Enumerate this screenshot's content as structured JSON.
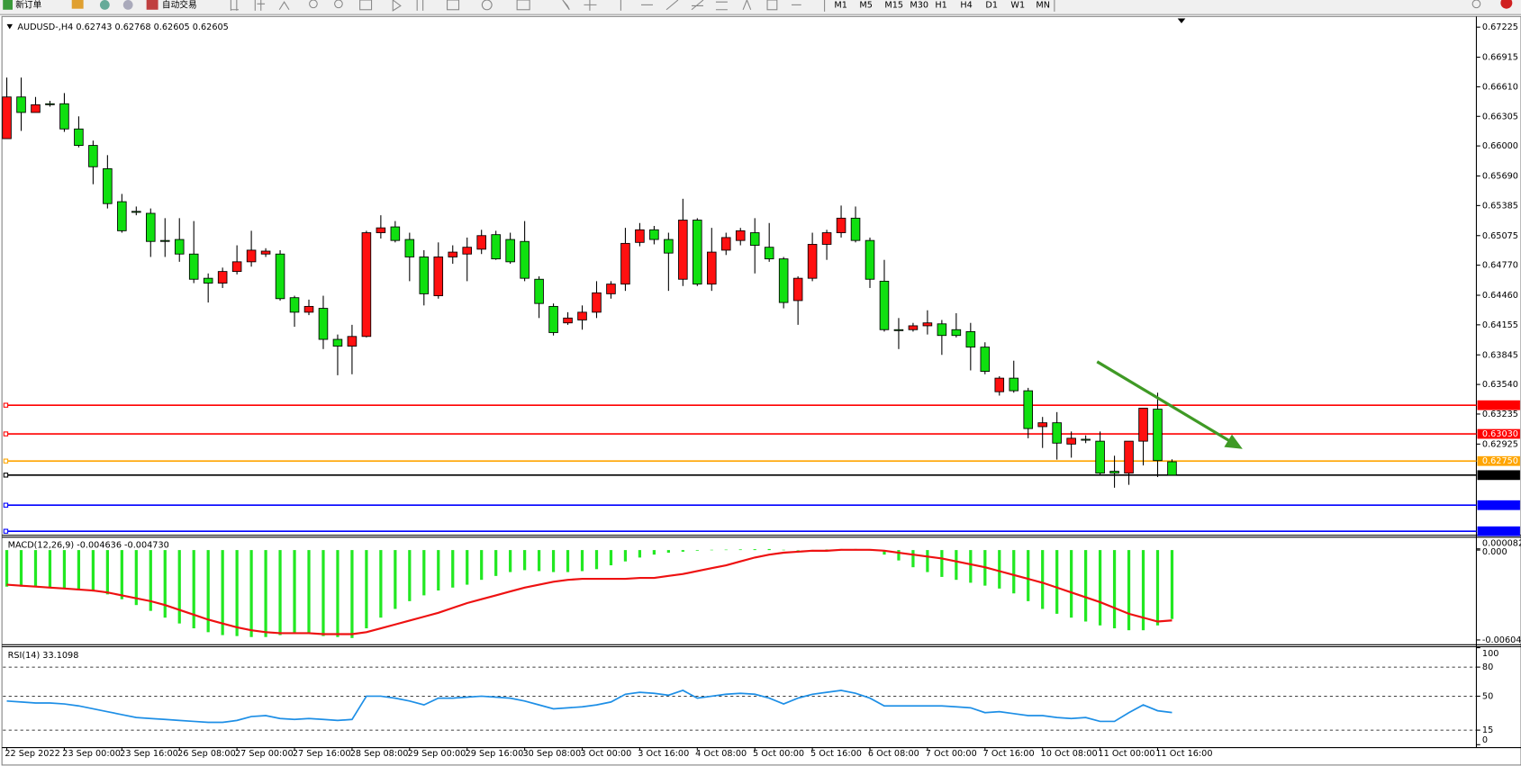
{
  "toolbar": {
    "new_order": "新订单",
    "auto_trading": "自动交易",
    "timeframes": [
      "M1",
      "M5",
      "M15",
      "M30",
      "H1",
      "H4",
      "D1",
      "W1",
      "MN"
    ]
  },
  "chart_data": [
    {
      "type": "candlestick",
      "title": "AUDUSD-,H4  0.62743 0.62768 0.62605 0.62605",
      "categories": [
        "22 Sep 2022",
        null,
        null,
        null,
        "23 Sep 00:00",
        null,
        null,
        null,
        "23 Sep 16:00",
        null,
        null,
        null,
        "26 Sep 08:00",
        null,
        null,
        null,
        "27 Sep 00:00",
        null,
        null,
        null,
        "27 Sep 16:00",
        null,
        null,
        null,
        "28 Sep 08:00",
        null,
        null,
        null,
        "29 Sep 00:00",
        null,
        null,
        null,
        "29 Sep 16:00",
        null,
        null,
        null,
        "30 Sep 08:00",
        null,
        null,
        null,
        "3 Oct 00:00",
        null,
        null,
        null,
        "3 Oct 16:00",
        null,
        null,
        null,
        "4 Oct 08:00",
        null,
        null,
        null,
        "5 Oct 00:00",
        null,
        null,
        null,
        "5 Oct 16:00",
        null,
        null,
        null,
        "6 Oct 08:00",
        null,
        null,
        null,
        "7 Oct 00:00",
        null,
        null,
        null,
        "7 Oct 16:00",
        null,
        null,
        null,
        "10 Oct 08:00",
        null,
        null,
        null,
        "11 Oct 00:00",
        null,
        null,
        null,
        "11 Oct 16:00",
        null
      ],
      "ohlc": [
        [
          0.66075,
          0.66705,
          0.66075,
          0.66505
        ],
        [
          0.66505,
          0.66705,
          0.66155,
          0.66345
        ],
        [
          0.66345,
          0.66505,
          0.66345,
          0.66425
        ],
        [
          0.66435,
          0.66465,
          0.66405,
          0.66425
        ],
        [
          0.66435,
          0.66545,
          0.66145,
          0.66175
        ],
        [
          0.66175,
          0.66305,
          0.65985,
          0.66005
        ],
        [
          0.66005,
          0.66055,
          0.65605,
          0.65785
        ],
        [
          0.65765,
          0.65905,
          0.65355,
          0.65405
        ],
        [
          0.65425,
          0.65505,
          0.65105,
          0.65125
        ],
        [
          0.65325,
          0.65375,
          0.65285,
          0.65315
        ],
        [
          0.65305,
          0.65355,
          0.64855,
          0.65015
        ],
        [
          0.65025,
          0.65255,
          0.64855,
          0.65015
        ],
        [
          0.65035,
          0.65255,
          0.64805,
          0.64885
        ],
        [
          0.64885,
          0.65225,
          0.64585,
          0.64625
        ],
        [
          0.64635,
          0.64685,
          0.64385,
          0.64585
        ],
        [
          0.64585,
          0.64745,
          0.64535,
          0.64705
        ],
        [
          0.64705,
          0.64975,
          0.64675,
          0.64805
        ],
        [
          0.64805,
          0.65125,
          0.64755,
          0.64925
        ],
        [
          0.64885,
          0.64945,
          0.64855,
          0.64915
        ],
        [
          0.64885,
          0.64925,
          0.64405,
          0.64425
        ],
        [
          0.64435,
          0.64455,
          0.64135,
          0.64285
        ],
        [
          0.64285,
          0.64415,
          0.64255,
          0.64345
        ],
        [
          0.64325,
          0.64455,
          0.63905,
          0.64005
        ],
        [
          0.64005,
          0.64055,
          0.63635,
          0.63935
        ],
        [
          0.63935,
          0.64155,
          0.63645,
          0.64035
        ],
        [
          0.64035,
          0.65125,
          0.64025,
          0.65105
        ],
        [
          0.65105,
          0.65285,
          0.65045,
          0.65155
        ],
        [
          0.65165,
          0.65225,
          0.65005,
          0.65025
        ],
        [
          0.65035,
          0.65105,
          0.64605,
          0.64855
        ],
        [
          0.64855,
          0.64925,
          0.64355,
          0.64475
        ],
        [
          0.64455,
          0.65005,
          0.64425,
          0.64855
        ],
        [
          0.64855,
          0.64975,
          0.64785,
          0.64905
        ],
        [
          0.64885,
          0.65055,
          0.64605,
          0.64955
        ],
        [
          0.64935,
          0.65135,
          0.64885,
          0.65075
        ],
        [
          0.65085,
          0.65125,
          0.64825,
          0.64835
        ],
        [
          0.65035,
          0.65105,
          0.64785,
          0.64805
        ],
        [
          0.65015,
          0.65225,
          0.64605,
          0.64635
        ],
        [
          0.64625,
          0.64655,
          0.64225,
          0.64375
        ],
        [
          0.64345,
          0.64375,
          0.64045,
          0.64075
        ],
        [
          0.64175,
          0.64285,
          0.64155,
          0.64225
        ],
        [
          0.64205,
          0.64355,
          0.64105,
          0.64285
        ],
        [
          0.64285,
          0.64605,
          0.64225,
          0.64485
        ],
        [
          0.64475,
          0.64605,
          0.64425,
          0.64575
        ],
        [
          0.64575,
          0.65155,
          0.64505,
          0.64995
        ],
        [
          0.65005,
          0.65205,
          0.64965,
          0.65135
        ],
        [
          0.65135,
          0.65175,
          0.64985,
          0.65035
        ],
        [
          0.65035,
          0.65105,
          0.64505,
          0.64895
        ],
        [
          0.64625,
          0.65455,
          0.64555,
          0.65235
        ],
        [
          0.65235,
          0.65255,
          0.64555,
          0.64575
        ],
        [
          0.64575,
          0.65155,
          0.64505,
          0.64905
        ],
        [
          0.64925,
          0.65105,
          0.64875,
          0.65055
        ],
        [
          0.65025,
          0.65155,
          0.64975,
          0.65125
        ],
        [
          0.65105,
          0.65255,
          0.64685,
          0.64975
        ],
        [
          0.64955,
          0.65205,
          0.64805,
          0.64835
        ],
        [
          0.64835,
          0.64855,
          0.64325,
          0.64385
        ],
        [
          0.64405,
          0.64655,
          0.64155,
          0.64635
        ],
        [
          0.64635,
          0.65105,
          0.64605,
          0.64985
        ],
        [
          0.64985,
          0.65135,
          0.64825,
          0.65105
        ],
        [
          0.65105,
          0.65385,
          0.65055,
          0.65255
        ],
        [
          0.65255,
          0.65375,
          0.65005,
          0.65025
        ],
        [
          0.65025,
          0.65055,
          0.64535,
          0.64625
        ],
        [
          0.64605,
          0.64825,
          0.64085,
          0.64105
        ],
        [
          0.64105,
          0.64225,
          0.63905,
          0.64095
        ],
        [
          0.64105,
          0.64175,
          0.64085,
          0.64145
        ],
        [
          0.64145,
          0.64305,
          0.64055,
          0.64175
        ],
        [
          0.64165,
          0.64205,
          0.63845,
          0.64045
        ],
        [
          0.64105,
          0.64275,
          0.64025,
          0.64045
        ],
        [
          0.64085,
          0.64175,
          0.63685,
          0.63925
        ],
        [
          0.63925,
          0.63975,
          0.63645,
          0.63675
        ],
        [
          0.63465,
          0.63625,
          0.63425,
          0.63605
        ],
        [
          0.63605,
          0.63785,
          0.63455,
          0.63475
        ],
        [
          0.63475,
          0.63505,
          0.62985,
          0.63085
        ],
        [
          0.63105,
          0.63205,
          0.62885,
          0.63145
        ],
        [
          0.63145,
          0.63255,
          0.62765,
          0.62935
        ],
        [
          0.62925,
          0.63055,
          0.62785,
          0.62985
        ],
        [
          0.62975,
          0.63015,
          0.62935,
          0.62965
        ],
        [
          0.62955,
          0.63055,
          0.62605,
          0.62625
        ],
        [
          0.62645,
          0.62805,
          0.62475,
          0.62625
        ],
        [
          0.62625,
          0.62955,
          0.62505,
          0.62955
        ],
        [
          0.62955,
          0.63295,
          0.62705,
          0.63295
        ],
        [
          0.63285,
          0.63455,
          0.62585,
          0.62755
        ],
        [
          0.62743,
          0.62768,
          0.62605,
          0.62605
        ]
      ],
      "bull_color": "#ff1010",
      "bear_color": "#10e010",
      "ylim": [
        0.61985,
        0.67305
      ],
      "yticks": [
        0.67225,
        0.66915,
        {
          "value": 0.6661,
          "label": "0.66610"
        },
        0.66305,
        {
          "value": 0.66,
          "label": "0.66000"
        },
        {
          "value": 0.6569,
          "label": "0.65690"
        },
        0.65385,
        0.65075,
        {
          "value": 0.6477,
          "label": "0.64770"
        },
        {
          "value": 0.6446,
          "label": "0.64460"
        },
        0.64155,
        0.63845,
        {
          "value": 0.6354,
          "label": "0.63540"
        },
        0.63235,
        0.62925
      ],
      "hlines": [
        {
          "value": 0.63326,
          "color": "#ff0000"
        },
        {
          "value": 0.6303,
          "label": "0.63030",
          "color": "#ff0000"
        },
        {
          "value": 0.6275,
          "label": "0.62750",
          "color": "#ffa500"
        },
        {
          "value": 0.62605,
          "color": "#000000"
        },
        {
          "value": 0.62295,
          "color": "#0000ff"
        },
        {
          "value": 0.62026,
          "color": "#0000ff"
        }
      ]
    },
    {
      "type": "macd",
      "title": "MACD(12,26,9) -0.004636 -0.004730",
      "histogram": {
        "color": "#22e822",
        "values": [
          -0.002458,
          -0.002458,
          -0.002458,
          -0.002523,
          -0.002588,
          -0.002654,
          -0.002784,
          -0.00298,
          -0.003306,
          -0.003697,
          -0.004088,
          -0.004544,
          -0.004936,
          -0.005262,
          -0.005522,
          -0.005718,
          -0.005783,
          -0.005848,
          -0.005848,
          -0.005718,
          -0.005653,
          -0.005653,
          -0.005783,
          -0.005848,
          -0.005914,
          -0.005262,
          -0.004544,
          -0.003958,
          -0.003436,
          -0.003045,
          -0.002719,
          -0.002523,
          -0.002328,
          -0.002002,
          -0.001741,
          -0.00148,
          -0.00135,
          -0.001415,
          -0.00148,
          -0.00148,
          -0.001415,
          -0.001284,
          -0.001024,
          -0.000763,
          -0.000502,
          -0.000306,
          -0.000176,
          -0.000111,
          -4.6e-05,
          2e-05,
          3e-05,
          4.5e-05,
          6e-05,
          7e-05,
          2e-05,
          -3e-05,
          1e-05,
          4e-05,
          7e-05,
          7.5e-05,
          -2e-05,
          -0.000306,
          -0.000698,
          -0.001154,
          -0.00148,
          -0.001806,
          -0.002002,
          -0.002197,
          -0.002393,
          -0.002588,
          -0.002914,
          -0.003436,
          -0.003958,
          -0.004284,
          -0.004544,
          -0.004805,
          -0.005066,
          -0.005262,
          -0.005392,
          -0.005392,
          -0.005066,
          -0.004636
        ]
      },
      "signal": {
        "color": "#ee1111",
        "values": [
          -0.002328,
          -0.002393,
          -0.002458,
          -0.002523,
          -0.002588,
          -0.002654,
          -0.002719,
          -0.002849,
          -0.003045,
          -0.00324,
          -0.003436,
          -0.003697,
          -0.004023,
          -0.004349,
          -0.004675,
          -0.004936,
          -0.005196,
          -0.005392,
          -0.005522,
          -0.005588,
          -0.005588,
          -0.005588,
          -0.005653,
          -0.005653,
          -0.005653,
          -0.005522,
          -0.005262,
          -0.005001,
          -0.00474,
          -0.004479,
          -0.004218,
          -0.003892,
          -0.003566,
          -0.003306,
          -0.003045,
          -0.002784,
          -0.002523,
          -0.002328,
          -0.002132,
          -0.002002,
          -0.001936,
          -0.001936,
          -0.001936,
          -0.001936,
          -0.001871,
          -0.001871,
          -0.001741,
          -0.00161,
          -0.001415,
          -0.001219,
          -0.001024,
          -0.000763,
          -0.000502,
          -0.000306,
          -0.000176,
          -0.000111,
          -4.6e-05,
          -4.6e-05,
          2e-05,
          2e-05,
          2e-05,
          -4.6e-05,
          -0.000176,
          -0.000306,
          -0.000437,
          -0.000567,
          -0.000763,
          -0.000958,
          -0.001154,
          -0.001415,
          -0.001676,
          -0.001936,
          -0.002197,
          -0.002523,
          -0.002849,
          -0.003175,
          -0.003501,
          -0.003892,
          -0.004284,
          -0.004544,
          -0.004805,
          -0.00473
        ]
      },
      "ylim": [
        -0.006044,
        8.2e-05
      ],
      "yticks": [
        8.2e-05,
        {
          "value": 0,
          "label": "0.000"
        },
        -0.006044
      ]
    },
    {
      "type": "line",
      "title": "RSI(14) 33.1098",
      "series": [
        {
          "color": "#1e8fe6",
          "values": [
            45,
            44,
            43,
            43,
            42,
            40,
            37,
            34,
            31,
            28,
            27,
            26,
            25,
            24,
            23,
            23,
            25,
            29,
            30,
            27,
            26,
            27,
            26,
            25,
            26,
            50,
            50,
            48,
            45,
            41,
            48,
            48,
            49,
            50,
            49,
            48,
            45,
            41,
            37,
            38,
            39,
            41,
            44,
            52,
            54,
            53,
            51,
            56,
            48,
            50,
            52,
            53,
            52,
            48,
            42,
            48,
            52,
            54,
            56,
            53,
            48,
            40,
            40,
            40,
            40,
            40,
            39,
            38,
            33,
            34,
            32,
            30,
            30,
            28,
            27,
            28,
            24,
            24,
            33,
            41,
            35,
            33.1098
          ]
        }
      ],
      "ylim": [
        0,
        100
      ],
      "yticks": [
        100,
        80,
        50,
        15,
        0
      ]
    }
  ]
}
